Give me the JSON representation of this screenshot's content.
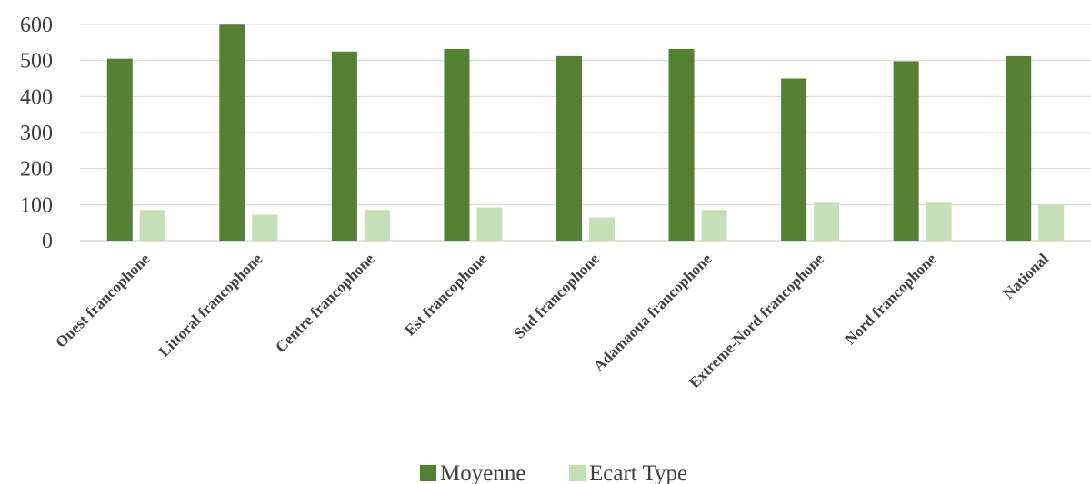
{
  "chart_data": {
    "type": "bar",
    "categories": [
      "Ouest francophone",
      "Littoral francophone",
      "Centre francophone",
      "Est francophone",
      "Sud francophone",
      "Adamaoua francophone",
      "Extreme-Nord francophone",
      "Nord francophone",
      "National"
    ],
    "series": [
      {
        "name": "Moyenne",
        "color": "#548235",
        "values": [
          505,
          602,
          525,
          532,
          512,
          532,
          450,
          498,
          512
        ]
      },
      {
        "name": "Ecart Type",
        "color": "#c5e0b4",
        "values": [
          85,
          72,
          85,
          92,
          64,
          85,
          105,
          105,
          99
        ]
      }
    ],
    "yticks": [
      0,
      100,
      200,
      300,
      400,
      500,
      600
    ],
    "ylim": [
      0,
      600
    ],
    "title": "",
    "xlabel": "",
    "ylabel": "",
    "grid": true,
    "legend_position": "bottom"
  }
}
